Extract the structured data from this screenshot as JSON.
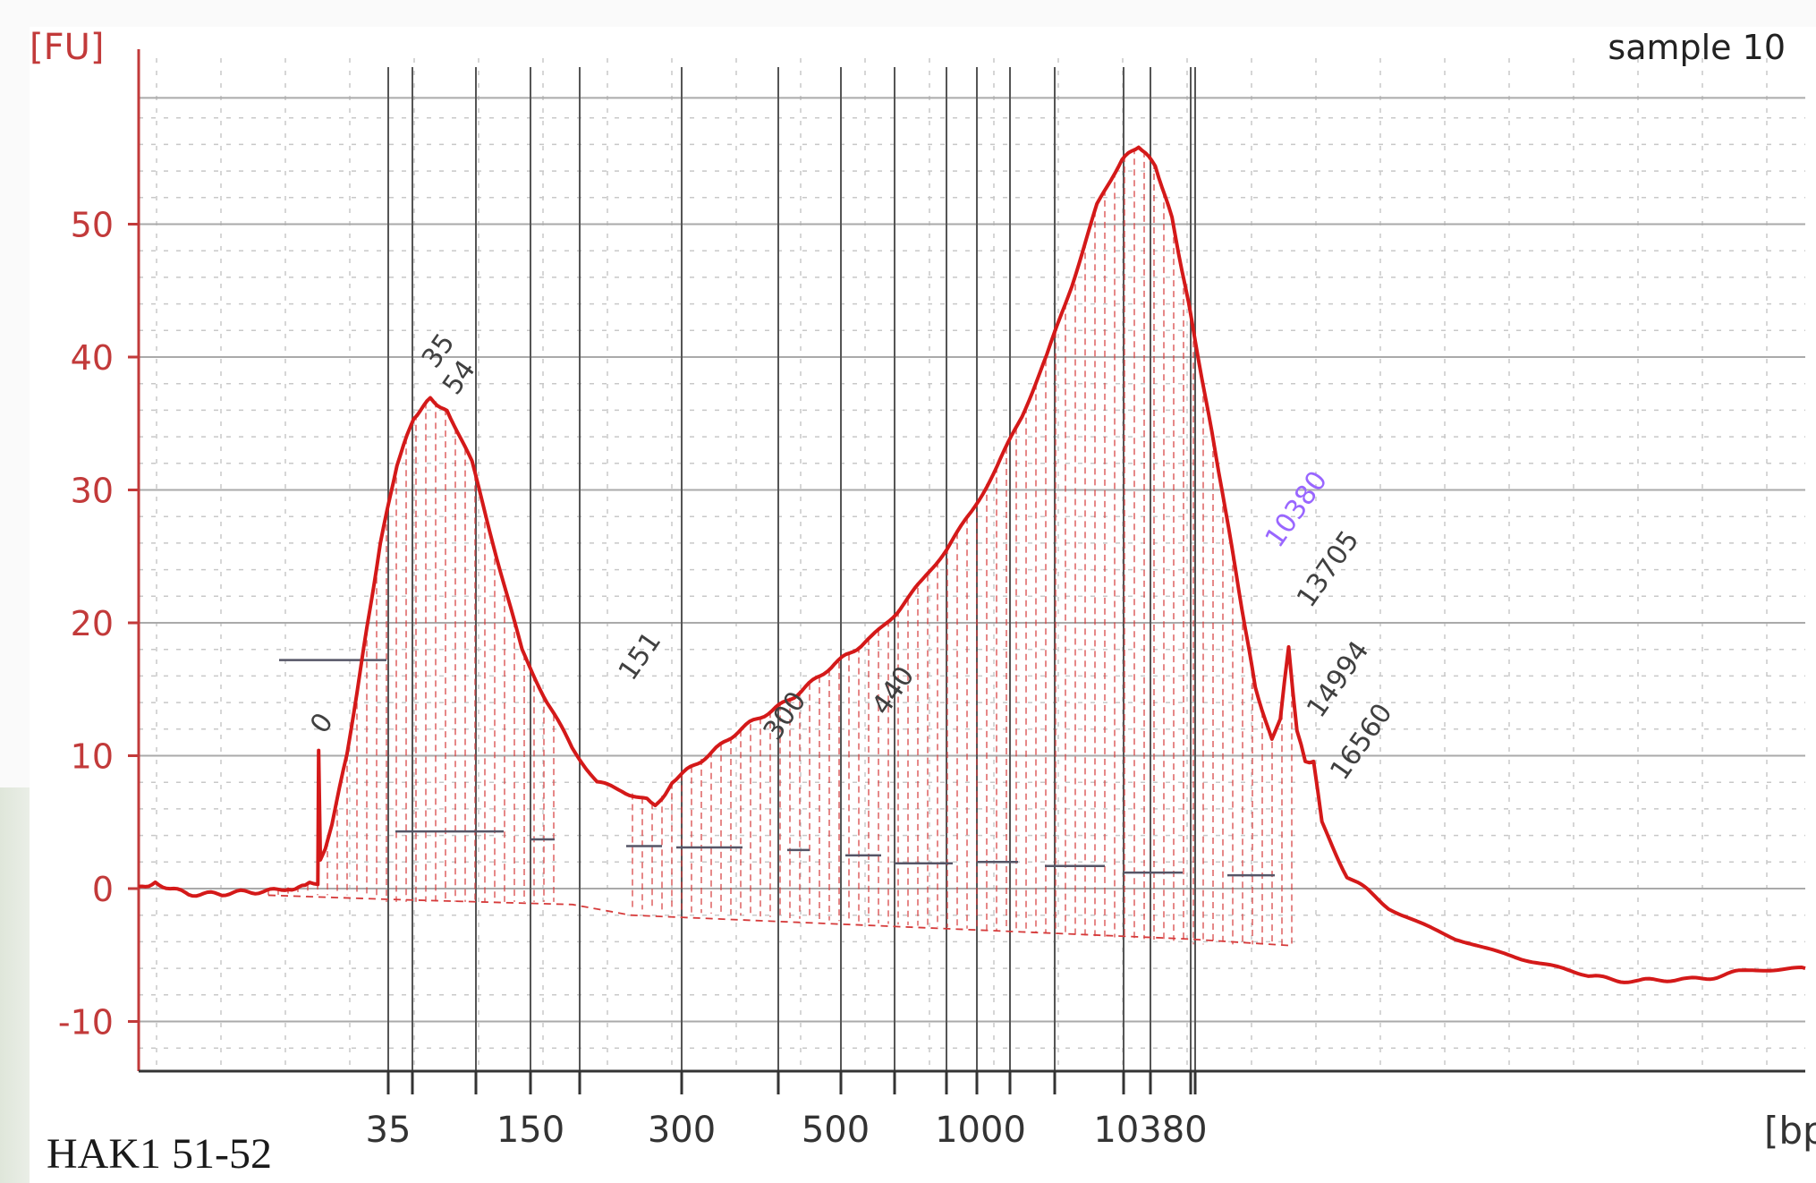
{
  "caption": "HAK1 51-52",
  "chart_data": {
    "type": "line",
    "title": "sample 10",
    "ylabel": "[FU]",
    "xlabel": "[bp]",
    "ylim": [
      -14,
      62
    ],
    "yticks": [
      -10,
      0,
      10,
      20,
      30,
      40,
      50
    ],
    "grid": true,
    "x_scale": "ladder (non-linear)",
    "x_tick_labels": [
      "35",
      "150",
      "300",
      "500",
      "1000",
      "10380"
    ],
    "colors": {
      "trace": "#d41919",
      "axis": "#c23a3a",
      "grid": "#aaaaaa",
      "markers": "#555555",
      "upper_marker": "#9966ff"
    },
    "series": [
      {
        "values": [
          [
            0,
            0
          ],
          [
            2,
            0.4
          ],
          [
            6,
            -0.3
          ],
          [
            10,
            -0.5
          ],
          [
            14,
            -0.2
          ],
          [
            18,
            0.1
          ],
          [
            20,
            0.3
          ],
          [
            21.5,
            0.4
          ],
          [
            21.6,
            10.5
          ],
          [
            21.8,
            2
          ],
          [
            22.4,
            3
          ],
          [
            23.2,
            5
          ],
          [
            25,
            10
          ],
          [
            27,
            18
          ],
          [
            29,
            26
          ],
          [
            31,
            32
          ],
          [
            33,
            35.5
          ],
          [
            35,
            37
          ],
          [
            37,
            36
          ],
          [
            40,
            32
          ],
          [
            43,
            25
          ],
          [
            46,
            18
          ],
          [
            49,
            14
          ],
          [
            52,
            10.5
          ],
          [
            55,
            8
          ],
          [
            58,
            7.5
          ],
          [
            61,
            6.7
          ],
          [
            62,
            6.3
          ],
          [
            64,
            8
          ],
          [
            68,
            10
          ],
          [
            72,
            11.8
          ],
          [
            76,
            13.4
          ],
          [
            80,
            15.2
          ],
          [
            84,
            17
          ],
          [
            88,
            19
          ],
          [
            91,
            20.8
          ],
          [
            94,
            23
          ],
          [
            97,
            25.6
          ],
          [
            100,
            28.5
          ],
          [
            103,
            31.8
          ],
          [
            106,
            35.5
          ],
          [
            109,
            40
          ],
          [
            112,
            45.5
          ],
          [
            115,
            51.5
          ],
          [
            118,
            55
          ],
          [
            120,
            56
          ],
          [
            122,
            54.5
          ],
          [
            124,
            50.5
          ],
          [
            126,
            44
          ],
          [
            128,
            37
          ],
          [
            130,
            30
          ],
          [
            132,
            22.5
          ],
          [
            134,
            15
          ],
          [
            136,
            11
          ],
          [
            137,
            13
          ],
          [
            138,
            18
          ],
          [
            139,
            12
          ],
          [
            140,
            9.5
          ],
          [
            141,
            9.6
          ],
          [
            142,
            5
          ],
          [
            145,
            1
          ],
          [
            150,
            -1.5
          ],
          [
            158,
            -3.8
          ],
          [
            166,
            -5.3
          ],
          [
            174,
            -6.5
          ],
          [
            180,
            -7
          ],
          [
            186,
            -6.9
          ],
          [
            192,
            -6.2
          ],
          [
            200,
            -6
          ]
        ]
      }
    ],
    "peak_annotations": [
      {
        "label": "0",
        "x": 21.6,
        "y": 11
      },
      {
        "label": "35",
        "x": 35,
        "y": 38.5
      },
      {
        "label": "54",
        "x": 37.5,
        "y": 36.5
      },
      {
        "label": "151",
        "x": 58.6,
        "y": 15
      },
      {
        "label": "300",
        "x": 76,
        "y": 10.5
      },
      {
        "label": "440",
        "x": 89,
        "y": 12.4
      },
      {
        "label": "10380",
        "x": 136.2,
        "y": 25,
        "color": "upper_marker"
      },
      {
        "label": "13705",
        "x": 140,
        "y": 20.5
      },
      {
        "label": "14994",
        "x": 141.2,
        "y": 12.2
      },
      {
        "label": "16560",
        "x": 144,
        "y": 7.5
      }
    ]
  }
}
